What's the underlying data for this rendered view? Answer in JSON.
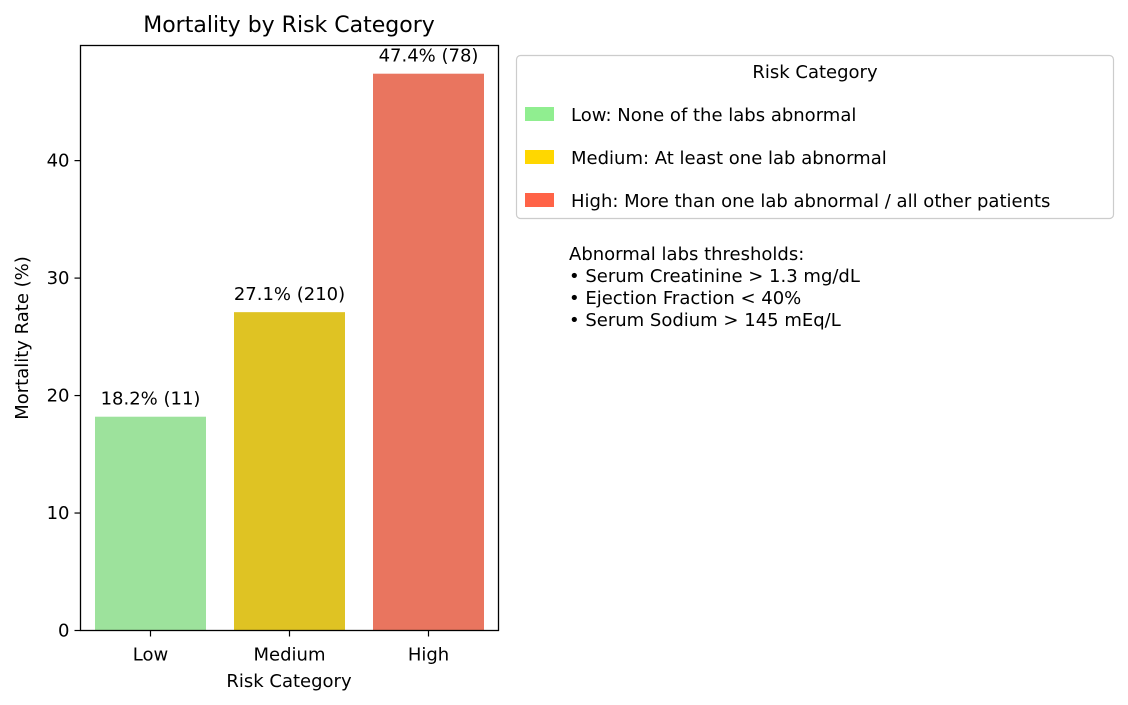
{
  "chart_data": {
    "type": "bar",
    "title": "Mortality by Risk Category",
    "xlabel": "Risk Category",
    "ylabel": "Mortality Rate (%)",
    "categories": [
      "Low",
      "Medium",
      "High"
    ],
    "values": [
      18.2,
      27.1,
      47.4
    ],
    "data_labels": [
      "18.2% (11)",
      "27.1% (210)",
      "47.4% (78)"
    ],
    "bar_colors": [
      "#9de29c",
      "#dfc323",
      "#e9755f"
    ],
    "ylim": [
      0,
      49.8
    ],
    "yticks": [
      0,
      10,
      20,
      30,
      40
    ],
    "grid": false,
    "legend": {
      "title": "Risk Category",
      "placement": "outside-right",
      "entries": [
        {
          "label": "Low: None of the labs abnormal",
          "color": "#90ee90"
        },
        {
          "label": "Medium: At least one lab abnormal",
          "color": "#ffd700"
        },
        {
          "label": "High: More than one lab abnormal / all other patients",
          "color": "#ff6347"
        }
      ]
    },
    "annotation": {
      "heading": "Abnormal labs thresholds:",
      "lines": [
        "• Serum Creatinine > 1.3 mg/dL",
        "• Ejection Fraction < 40%",
        "• Serum Sodium > 145 mEq/L"
      ]
    }
  }
}
